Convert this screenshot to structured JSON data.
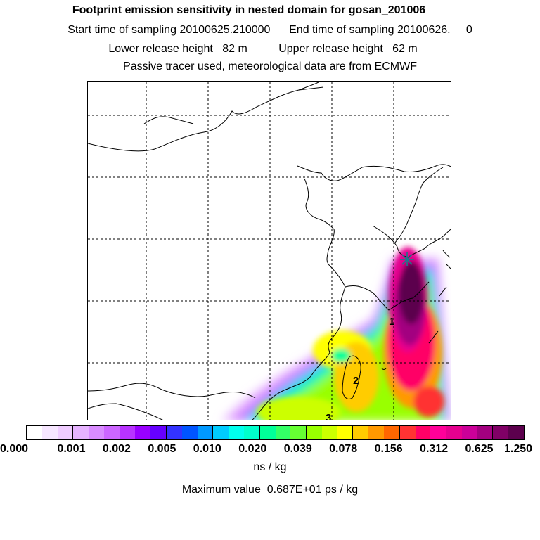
{
  "header": {
    "title": "Footprint emission sensitivity in nested domain for gosan_201006",
    "sampling_line": "Start time of sampling 20100625.210000      End time of sampling 20100626.     0",
    "release_line": "Lower release height   82 m          Upper release height   62 m",
    "tracer_line": "Passive tracer used, meteorological data are from ECMWF"
  },
  "map": {
    "contour_labels": [
      "1",
      "2",
      "3"
    ],
    "receptor_marker": "star-marker"
  },
  "colorbar": {
    "colors": [
      "#ffffff",
      "#f6e6ff",
      "#efccff",
      "#e6b3ff",
      "#d98cff",
      "#cc66ff",
      "#b833ff",
      "#9900ff",
      "#6600ff",
      "#3333ff",
      "#0055ff",
      "#0099ff",
      "#00ccff",
      "#00ffee",
      "#00ffcc",
      "#00ff99",
      "#33ff66",
      "#66ff33",
      "#99ff00",
      "#ccff00",
      "#ffff00",
      "#ffcc00",
      "#ff9900",
      "#ff6600",
      "#ff3333",
      "#ff0066",
      "#ff0099",
      "#e6008f",
      "#cc0099",
      "#a30080",
      "#800066",
      "#5c004d"
    ],
    "ticks": [
      "0.000",
      "0.001",
      "0.002",
      "0.005",
      "0.010",
      "0.020",
      "0.039",
      "0.078",
      "0.156",
      "0.312",
      "0.625",
      "1.250"
    ]
  },
  "units_label": "ns / kg",
  "max_value_line": "Maximum value  0.687E+01 ps / kg"
}
